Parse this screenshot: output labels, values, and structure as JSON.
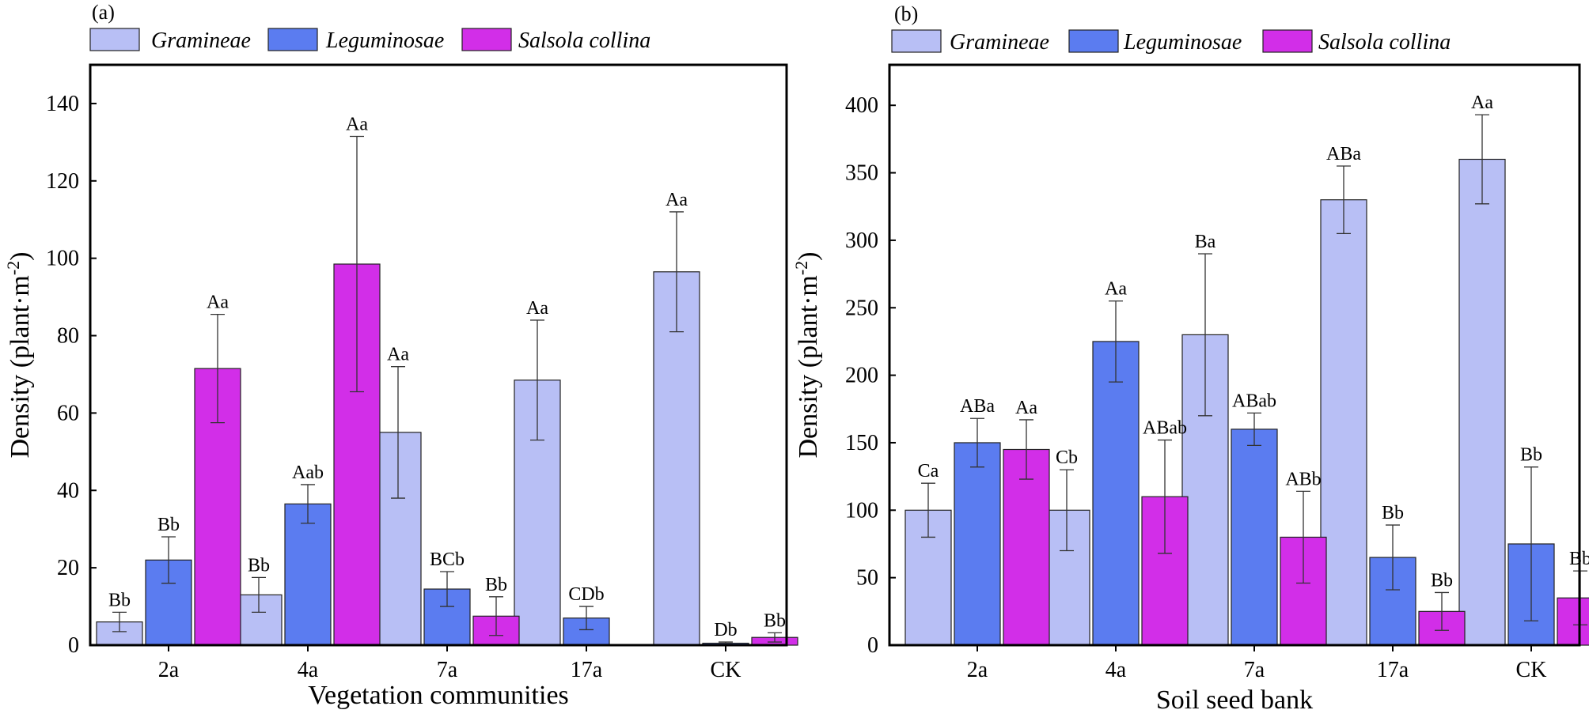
{
  "colors": {
    "Gramineae": "#b8bff5",
    "Leguminosae": "#5b7cf0",
    "Salsola collina": "#d22ee8",
    "axis": "#000000",
    "error": "#333333"
  },
  "chart_data": [
    {
      "type": "bar",
      "panel": "(a)",
      "xlabel": "Vegetation communities",
      "ylabel": "Density (plant·m",
      "ylabel_sup": "-2",
      "ylabel_close": ")",
      "ylim": [
        0,
        150
      ],
      "yticks": [
        0,
        20,
        40,
        60,
        80,
        100,
        120,
        140
      ],
      "categories": [
        "2a",
        "4a",
        "7a",
        "17a",
        "CK"
      ],
      "legend": [
        "Gramineae",
        "Leguminosae",
        "Salsola collina"
      ],
      "legend_position": "top",
      "series": [
        {
          "name": "Gramineae",
          "values": [
            6,
            13,
            55,
            68.5,
            96.5
          ],
          "errors": [
            2.5,
            4.5,
            17,
            15.5,
            15.5
          ],
          "labels": [
            "Bb",
            "Bb",
            "Aa",
            "Aa",
            "Aa"
          ]
        },
        {
          "name": "Leguminosae",
          "values": [
            22,
            36.5,
            14.5,
            7,
            0.5
          ],
          "errors": [
            6,
            5,
            4.5,
            3,
            0.3
          ],
          "labels": [
            "Bb",
            "Aab",
            "BCb",
            "CDb",
            "Db"
          ]
        },
        {
          "name": "Salsola collina",
          "values": [
            71.5,
            98.5,
            7.5,
            null,
            2
          ],
          "errors": [
            14,
            33,
            5,
            null,
            1.2
          ],
          "labels": [
            "Aa",
            "Aa",
            "Bb",
            "",
            "Bb"
          ]
        }
      ]
    },
    {
      "type": "bar",
      "panel": "(b)",
      "xlabel": "Soil seed bank",
      "ylabel": "Density (plant·m",
      "ylabel_sup": "-2",
      "ylabel_close": ")",
      "ylim": [
        0,
        430
      ],
      "yticks": [
        0,
        50,
        100,
        150,
        200,
        250,
        300,
        350,
        400
      ],
      "categories": [
        "2a",
        "4a",
        "7a",
        "17a",
        "CK"
      ],
      "legend": [
        "Gramineae",
        "Leguminosae",
        "Salsola collina"
      ],
      "legend_position": "top",
      "series": [
        {
          "name": "Gramineae",
          "values": [
            100,
            100,
            230,
            330,
            360
          ],
          "errors": [
            20,
            30,
            60,
            25,
            33
          ],
          "labels": [
            "Ca",
            "Cb",
            "Ba",
            "ABa",
            "Aa"
          ]
        },
        {
          "name": "Leguminosae",
          "values": [
            150,
            225,
            160,
            65,
            75
          ],
          "errors": [
            18,
            30,
            12,
            24,
            57
          ],
          "labels": [
            "ABa",
            "Aa",
            "ABab",
            "Bb",
            "Bb"
          ]
        },
        {
          "name": "Salsola collina",
          "values": [
            145,
            110,
            80,
            25,
            35
          ],
          "errors": [
            22,
            42,
            34,
            14,
            20
          ],
          "labels": [
            "Aa",
            "ABab",
            "ABb",
            "Bb",
            "Bb"
          ]
        }
      ]
    }
  ]
}
